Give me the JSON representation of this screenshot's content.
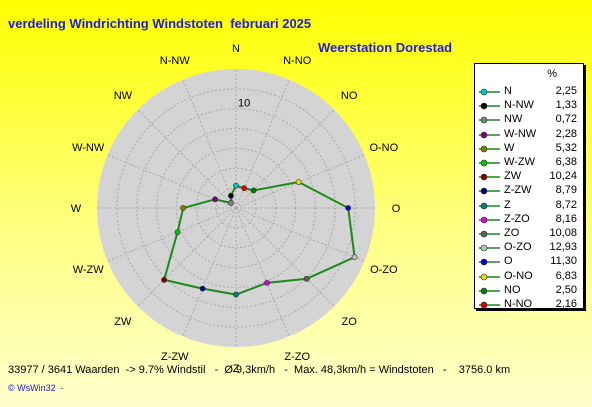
{
  "title": "verdeling Windrichting Windstoten  februari 2025",
  "station": "Weerstation Dorestad",
  "legend_header": "%",
  "stats_line": "33977 / 3641 Waarden  -> 9.7% Windstil   -  Ø 9,3km/h   -  Max. 48,3km/h = Windstoten   -    3756.0 km",
  "footer": "© WsWin32  -",
  "chart_data": {
    "type": "radar",
    "title": "verdeling Windrichting Windstoten  februari 2025",
    "unit": "%",
    "ring_label": "10",
    "rmax": 14,
    "directions": [
      "N",
      "N-NO",
      "NO",
      "O-NO",
      "O",
      "O-ZO",
      "ZO",
      "Z-ZO",
      "Z",
      "Z-ZW",
      "ZW",
      "W-ZW",
      "W",
      "W-NW",
      "NW",
      "N-NW"
    ],
    "series": [
      {
        "values": [
          2.25,
          2.16,
          2.5,
          6.83,
          11.3,
          12.93,
          10.08,
          8.16,
          8.72,
          8.79,
          10.24,
          6.38,
          5.32,
          2.28,
          0.72,
          1.33
        ],
        "color": "#1a8a1a"
      }
    ],
    "legend": [
      {
        "label": "N",
        "value": "2,25",
        "color": "#00c8c8"
      },
      {
        "label": "N-NW",
        "value": "1,33",
        "color": "#000000"
      },
      {
        "label": "NW",
        "value": "0,72",
        "color": "#808080"
      },
      {
        "label": "W-NW",
        "value": "2,28",
        "color": "#800080"
      },
      {
        "label": "W",
        "value": "5,32",
        "color": "#808000"
      },
      {
        "label": "W-ZW",
        "value": "6,38",
        "color": "#00c800"
      },
      {
        "label": "ZW",
        "value": "10,24",
        "color": "#800000"
      },
      {
        "label": "Z-ZW",
        "value": "8,79",
        "color": "#000080"
      },
      {
        "label": "Z",
        "value": "8,72",
        "color": "#008080"
      },
      {
        "label": "Z-ZO",
        "value": "8,16",
        "color": "#e000e0"
      },
      {
        "label": "ZO",
        "value": "10,08",
        "color": "#606060"
      },
      {
        "label": "O-ZO",
        "value": "12,93",
        "color": "#c0c0c0"
      },
      {
        "label": "O",
        "value": "11,30",
        "color": "#0000e0"
      },
      {
        "label": "O-NO",
        "value": "6,83",
        "color": "#e0e000"
      },
      {
        "label": "NO",
        "value": "2,50",
        "color": "#008000"
      },
      {
        "label": "N-NO",
        "value": "2,16",
        "color": "#e00000"
      }
    ]
  }
}
